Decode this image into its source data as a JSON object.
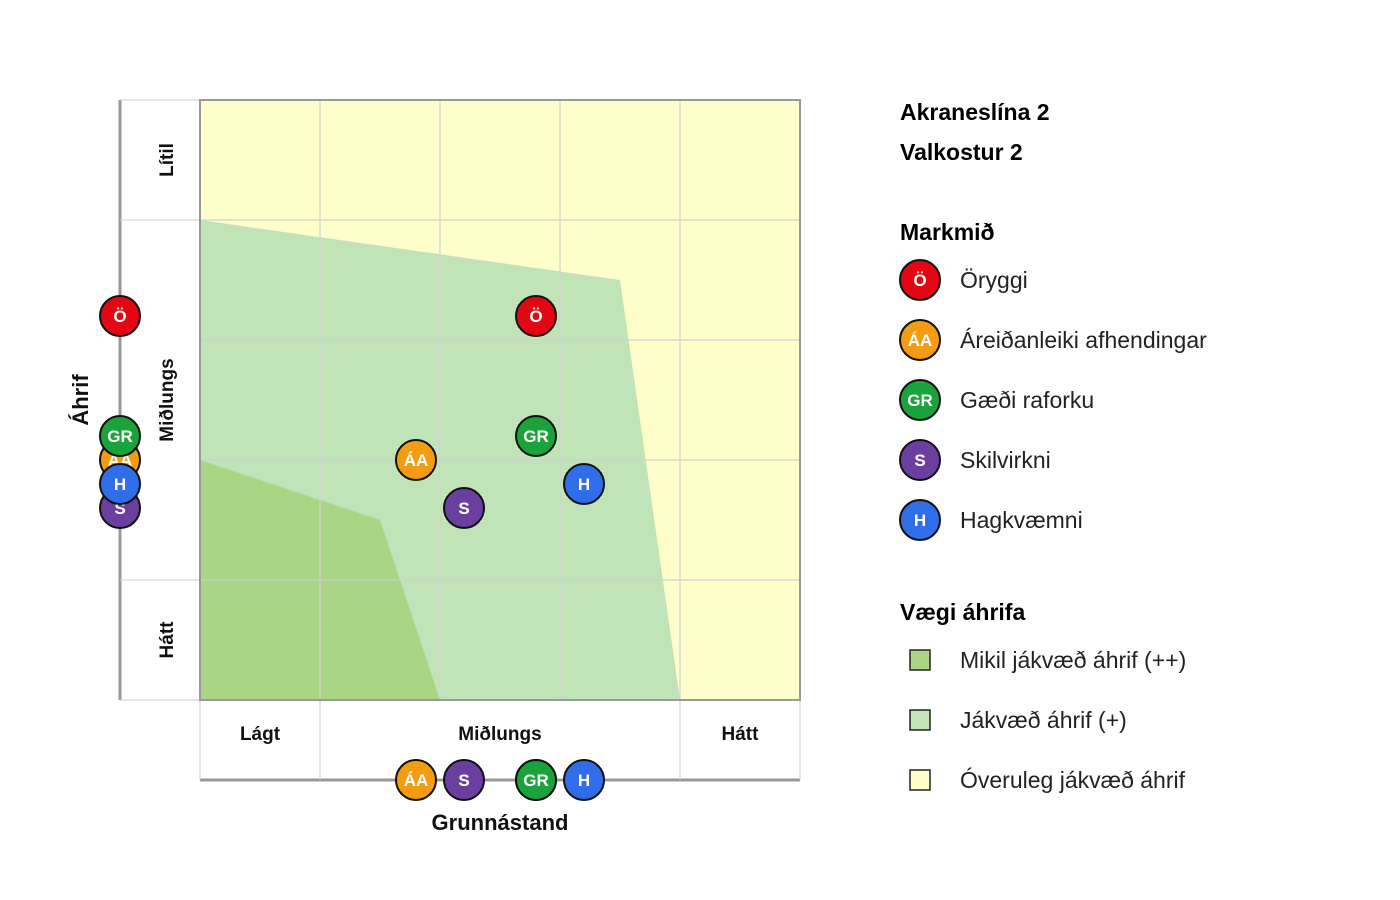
{
  "chart_data": {
    "type": "scatter",
    "title": "Akraneslína 2",
    "subtitle": "Valkostur 2",
    "xlabel": "Grunnástand",
    "ylabel": "Áhrif",
    "x_categories": [
      "Lágt",
      "Miðlungs",
      "Hátt"
    ],
    "y_categories": [
      "Lítil",
      "Miðlungs",
      "Hátt"
    ],
    "xlim": [
      0,
      5
    ],
    "ylim": [
      0,
      5
    ],
    "points": [
      {
        "code": "Ö",
        "x": 2.8,
        "y": 3.2
      },
      {
        "code": "ÁA",
        "x": 1.8,
        "y": 2.0
      },
      {
        "code": "GR",
        "x": 2.8,
        "y": 2.2
      },
      {
        "code": "S",
        "x": 2.2,
        "y": 1.6
      },
      {
        "code": "H",
        "x": 3.2,
        "y": 1.8
      }
    ],
    "zones": [
      {
        "key": "low",
        "color": "#ffffcc",
        "polygon": [
          [
            0,
            0
          ],
          [
            5,
            0
          ],
          [
            5,
            5
          ],
          [
            0,
            5
          ]
        ]
      },
      {
        "key": "mid",
        "color": "#c1e3b8",
        "polygon": [
          [
            0,
            4
          ],
          [
            3.5,
            3.5
          ],
          [
            4,
            0
          ],
          [
            0,
            0
          ]
        ]
      },
      {
        "key": "high",
        "color": "#a9d585",
        "polygon": [
          [
            0,
            2
          ],
          [
            1.5,
            1.5
          ],
          [
            2,
            0
          ],
          [
            0,
            0
          ]
        ]
      }
    ]
  },
  "legend": {
    "heading": "Markmið",
    "items": [
      {
        "code": "Ö",
        "label": "Öryggi",
        "color": "#e30613"
      },
      {
        "code": "ÁA",
        "label": "Áreiðanleiki afhendingar",
        "color": "#f39c12"
      },
      {
        "code": "GR",
        "label": "Gæði raforku",
        "color": "#1aa33b"
      },
      {
        "code": "S",
        "label": "Skilvirkni",
        "color": "#6b3fa0"
      },
      {
        "code": "H",
        "label": "Hagkvæmni",
        "color": "#2f6ee8"
      }
    ]
  },
  "impact_legend": {
    "heading": "Vægi áhrifa",
    "items": [
      {
        "label": "Mikil jákvæð áhrif (++)",
        "color": "#a9d585"
      },
      {
        "label": "Jákvæð áhrif (+)",
        "color": "#c1e3b8"
      },
      {
        "label": "Óveruleg jákvæð áhrif",
        "color": "#ffffcc"
      }
    ]
  }
}
